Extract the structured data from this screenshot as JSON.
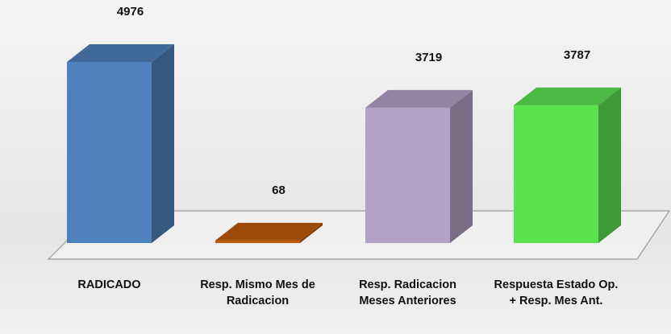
{
  "chart_data": {
    "type": "bar3d",
    "categories": [
      "RADICADO",
      "Resp. Mismo Mes de Radicacion",
      "Resp. Radicacion Meses Anteriores",
      "Respuesta Estado Op. + Resp. Mes Ant."
    ],
    "values": [
      4976,
      68,
      3719,
      3787
    ],
    "colors": [
      "#4f81bd",
      "#c0590a",
      "#b3a2c7",
      "#5ae24f"
    ]
  }
}
